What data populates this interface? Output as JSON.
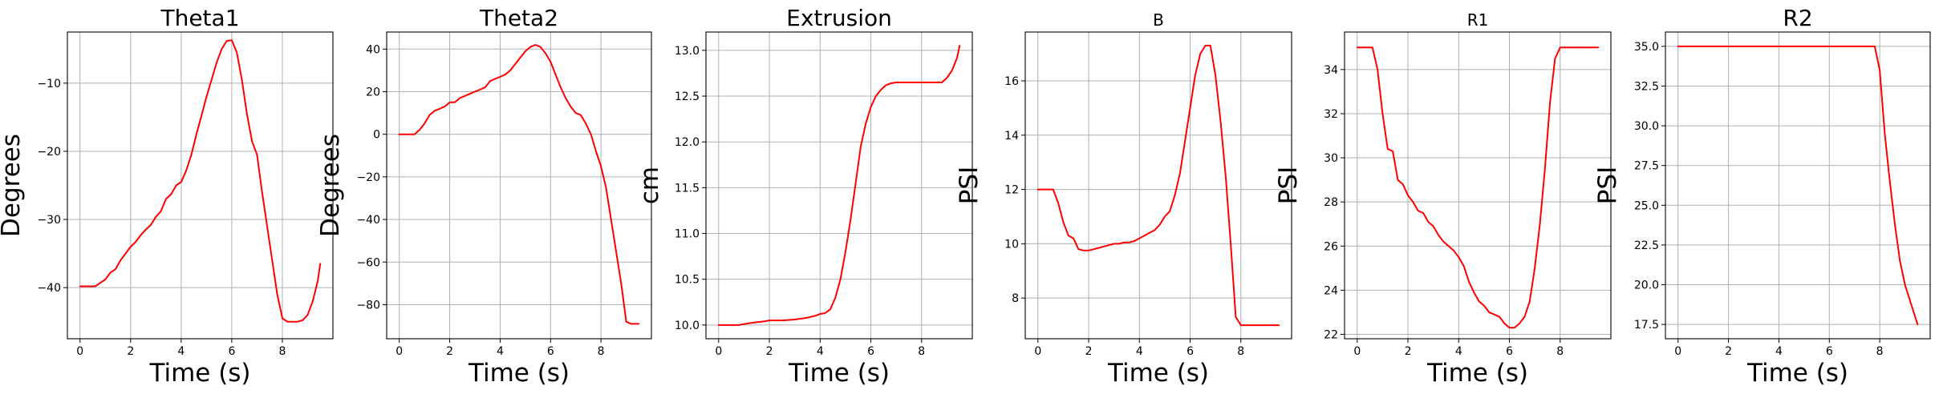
{
  "chart_data": [
    {
      "type": "line",
      "title": "Theta1",
      "xlabel": "Time (s)",
      "ylabel": "Degrees",
      "xlim": [
        -0.5,
        10
      ],
      "ylim": [
        -47.5,
        -2.5
      ],
      "xticks": [
        0,
        2,
        4,
        6,
        8
      ],
      "yticks": [
        -40,
        -30,
        -20,
        -10
      ],
      "grid": true,
      "series": [
        {
          "color": "#ff0000",
          "x": [
            0,
            0.6,
            0.8,
            1.0,
            1.2,
            1.4,
            1.6,
            1.8,
            2.0,
            2.2,
            2.4,
            2.6,
            2.8,
            3.0,
            3.2,
            3.4,
            3.6,
            3.8,
            4.0,
            4.2,
            4.4,
            4.6,
            4.8,
            5.0,
            5.2,
            5.4,
            5.6,
            5.8,
            6.0,
            6.2,
            6.4,
            6.6,
            6.8,
            7.0,
            7.2,
            7.4,
            7.6,
            7.8,
            8.0,
            8.2,
            8.4,
            8.6,
            8.8,
            9.0,
            9.2,
            9.4,
            9.5
          ],
          "y": [
            -39.8,
            -39.8,
            -39.3,
            -38.8,
            -37.8,
            -37.3,
            -36.0,
            -35.0,
            -34.0,
            -33.3,
            -32.3,
            -31.5,
            -30.8,
            -29.6,
            -28.8,
            -27.0,
            -26.3,
            -25.0,
            -24.5,
            -22.8,
            -20.5,
            -17.5,
            -14.8,
            -12.0,
            -9.5,
            -7.0,
            -5.0,
            -3.8,
            -3.7,
            -5.5,
            -9.5,
            -14.5,
            -18.5,
            -20.5,
            -26.0,
            -31.0,
            -36.0,
            -41.0,
            -44.5,
            -45.0,
            -45.0,
            -45.0,
            -44.8,
            -44.0,
            -42.0,
            -39.0,
            -36.5
          ]
        }
      ]
    },
    {
      "type": "line",
      "title": "Theta2",
      "xlabel": "Time (s)",
      "ylabel": "Degrees",
      "xlim": [
        -0.5,
        10
      ],
      "ylim": [
        -96,
        48
      ],
      "xticks": [
        0,
        2,
        4,
        6,
        8
      ],
      "yticks": [
        -80,
        -60,
        -40,
        -20,
        0,
        20,
        40
      ],
      "grid": true,
      "series": [
        {
          "color": "#ff0000",
          "x": [
            0,
            0.6,
            0.8,
            1.0,
            1.2,
            1.4,
            1.6,
            1.8,
            2.0,
            2.2,
            2.4,
            2.6,
            2.8,
            3.0,
            3.2,
            3.4,
            3.6,
            3.8,
            4.0,
            4.2,
            4.4,
            4.6,
            4.8,
            5.0,
            5.2,
            5.4,
            5.6,
            5.8,
            6.0,
            6.2,
            6.4,
            6.6,
            6.8,
            7.0,
            7.2,
            7.4,
            7.6,
            7.8,
            8.0,
            8.2,
            8.4,
            8.6,
            8.8,
            9.0,
            9.2,
            9.5
          ],
          "y": [
            0,
            0,
            2,
            5,
            9,
            11,
            12,
            13,
            15,
            15,
            17,
            18,
            19,
            20,
            21,
            22,
            25,
            26,
            27,
            28,
            30,
            33,
            36,
            39,
            41,
            42,
            41,
            38,
            34,
            28,
            22,
            17,
            13,
            10,
            9,
            5,
            0,
            -8,
            -15,
            -25,
            -40,
            -55,
            -70,
            -88,
            -89,
            -89
          ]
        }
      ]
    },
    {
      "type": "line",
      "title": "Extrusion",
      "xlabel": "Time (s)",
      "ylabel": "cm",
      "xlim": [
        -0.5,
        10
      ],
      "ylim": [
        9.85,
        13.2
      ],
      "xticks": [
        0,
        2,
        4,
        6,
        8
      ],
      "yticks": [
        10.0,
        10.5,
        11.0,
        11.5,
        12.0,
        12.5,
        13.0
      ],
      "grid": true,
      "series": [
        {
          "color": "#ff0000",
          "x": [
            0,
            0.8,
            1.0,
            1.2,
            1.5,
            1.8,
            2.0,
            2.5,
            3.0,
            3.5,
            3.8,
            4.0,
            4.2,
            4.4,
            4.6,
            4.8,
            5.0,
            5.2,
            5.4,
            5.6,
            5.8,
            6.0,
            6.2,
            6.4,
            6.6,
            6.8,
            7.0,
            7.2,
            7.5,
            8.0,
            8.5,
            8.8,
            9.0,
            9.2,
            9.4,
            9.5
          ],
          "y": [
            10.0,
            10.0,
            10.01,
            10.02,
            10.03,
            10.04,
            10.05,
            10.05,
            10.06,
            10.08,
            10.1,
            10.12,
            10.13,
            10.17,
            10.3,
            10.5,
            10.8,
            11.15,
            11.55,
            11.95,
            12.2,
            12.38,
            12.5,
            12.57,
            12.62,
            12.64,
            12.65,
            12.65,
            12.65,
            12.65,
            12.65,
            12.65,
            12.7,
            12.78,
            12.92,
            13.05
          ]
        }
      ]
    },
    {
      "type": "line",
      "title": "B",
      "xlabel": "Time (s)",
      "ylabel": "PSI",
      "xlim": [
        -0.5,
        10
      ],
      "ylim": [
        6.5,
        17.8
      ],
      "xticks": [
        0,
        2,
        4,
        6,
        8
      ],
      "yticks": [
        8,
        10,
        12,
        14,
        16
      ],
      "grid": true,
      "series": [
        {
          "color": "#ff0000",
          "x": [
            0,
            0.6,
            0.8,
            1.0,
            1.2,
            1.4,
            1.6,
            1.8,
            2.0,
            2.2,
            2.4,
            2.6,
            2.8,
            3.0,
            3.2,
            3.4,
            3.6,
            3.8,
            4.0,
            4.2,
            4.4,
            4.6,
            4.8,
            5.0,
            5.2,
            5.4,
            5.6,
            5.8,
            6.0,
            6.2,
            6.4,
            6.6,
            6.8,
            7.0,
            7.2,
            7.4,
            7.6,
            7.8,
            8.0,
            8.2,
            8.4,
            8.6,
            8.8,
            9.0,
            9.2,
            9.5
          ],
          "y": [
            12.0,
            12.0,
            11.5,
            10.8,
            10.3,
            10.2,
            9.8,
            9.75,
            9.75,
            9.8,
            9.85,
            9.9,
            9.95,
            10.0,
            10.0,
            10.05,
            10.05,
            10.1,
            10.2,
            10.3,
            10.4,
            10.5,
            10.7,
            11.0,
            11.2,
            11.8,
            12.6,
            13.8,
            15.0,
            16.2,
            17.0,
            17.3,
            17.3,
            16.2,
            14.5,
            12.5,
            10.0,
            7.3,
            7.0,
            7.0,
            7.0,
            7.0,
            7.0,
            7.0,
            7.0,
            7.0
          ]
        }
      ]
    },
    {
      "type": "line",
      "title": "R1",
      "xlabel": "Time (s)",
      "ylabel": "PSI",
      "xlim": [
        -0.5,
        10
      ],
      "ylim": [
        21.8,
        35.7
      ],
      "xticks": [
        0,
        2,
        4,
        6,
        8
      ],
      "yticks": [
        22,
        24,
        26,
        28,
        30,
        32,
        34
      ],
      "grid": true,
      "series": [
        {
          "color": "#ff0000",
          "x": [
            0,
            0.6,
            0.8,
            1.0,
            1.2,
            1.4,
            1.6,
            1.8,
            2.0,
            2.2,
            2.4,
            2.6,
            2.8,
            3.0,
            3.2,
            3.4,
            3.6,
            3.8,
            4.0,
            4.2,
            4.4,
            4.6,
            4.8,
            5.0,
            5.2,
            5.4,
            5.6,
            5.8,
            6.0,
            6.2,
            6.4,
            6.6,
            6.8,
            7.0,
            7.2,
            7.4,
            7.6,
            7.8,
            8.0,
            8.2,
            8.4,
            8.6,
            8.8,
            9.0,
            9.2,
            9.5
          ],
          "y": [
            35,
            35,
            34,
            32,
            30.4,
            30.3,
            29,
            28.8,
            28.3,
            28.0,
            27.6,
            27.5,
            27.1,
            26.9,
            26.5,
            26.2,
            26.0,
            25.8,
            25.5,
            25.1,
            24.4,
            23.9,
            23.5,
            23.3,
            23.0,
            22.9,
            22.8,
            22.5,
            22.3,
            22.3,
            22.5,
            22.8,
            23.5,
            25.0,
            27.0,
            29.5,
            32.5,
            34.5,
            35,
            35,
            35,
            35,
            35,
            35,
            35,
            35
          ]
        }
      ]
    },
    {
      "type": "line",
      "title": "R2",
      "xlabel": "Time (s)",
      "ylabel": "PSI",
      "xlim": [
        -0.5,
        10
      ],
      "ylim": [
        16.6,
        35.9
      ],
      "xticks": [
        0,
        2,
        4,
        6,
        8
      ],
      "yticks": [
        17.5,
        20.0,
        22.5,
        25.0,
        27.5,
        30.0,
        32.5,
        35.0
      ],
      "grid": true,
      "series": [
        {
          "color": "#ff0000",
          "x": [
            0,
            1,
            2,
            3,
            4,
            5,
            6,
            7,
            7.8,
            8.0,
            8.2,
            8.4,
            8.6,
            8.8,
            9.0,
            9.2,
            9.4,
            9.5
          ],
          "y": [
            35,
            35,
            35,
            35,
            35,
            35,
            35,
            35,
            35,
            33.5,
            29.5,
            26.5,
            23.8,
            21.5,
            20.0,
            19.0,
            18.0,
            17.5
          ]
        }
      ]
    }
  ]
}
